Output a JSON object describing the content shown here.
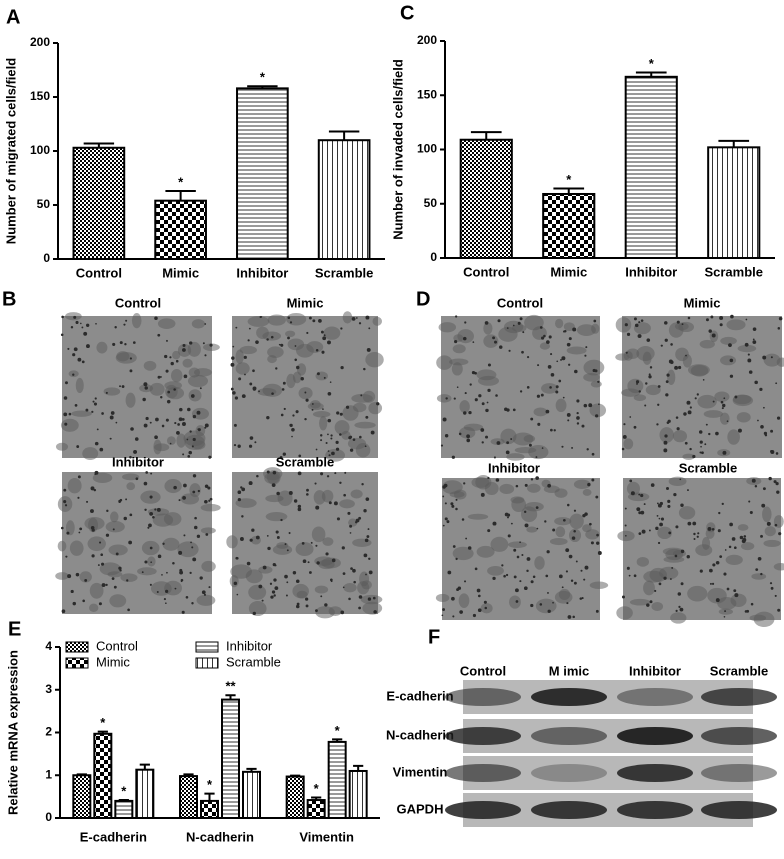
{
  "chart_data": [
    {
      "type": "bar",
      "panel": "A",
      "y_label": "Number of migrated cells/field",
      "categories": [
        "Control",
        "Mimic",
        "Inhibitor",
        "Scramble"
      ],
      "values": [
        103,
        54,
        158,
        110
      ],
      "errors": [
        4,
        9,
        2,
        8
      ],
      "annotations": [
        null,
        "*",
        "*",
        null
      ],
      "fills": [
        "checker-fine",
        "checker",
        "hlines",
        "vlines"
      ],
      "color": "#000000",
      "ylim": [
        0,
        200
      ],
      "yticks": [
        0,
        50,
        100,
        150,
        200
      ]
    },
    {
      "type": "bar",
      "panel": "C",
      "y_label": "Number of invaded cells/field",
      "categories": [
        "Control",
        "Mimic",
        "Inhibitor",
        "Scramble"
      ],
      "values": [
        109,
        59,
        167,
        102
      ],
      "errors": [
        7,
        5,
        4,
        6
      ],
      "annotations": [
        null,
        "*",
        "*",
        null
      ],
      "fills": [
        "checker-fine",
        "checker",
        "hlines",
        "vlines"
      ],
      "color": "#000000",
      "ylim": [
        0,
        200
      ],
      "yticks": [
        0,
        50,
        100,
        150,
        200
      ]
    },
    {
      "type": "grouped-bar",
      "panel": "E",
      "y_label": "Relative mRNA expression",
      "categories": [
        "E-cadherin",
        "N-cadherin",
        "Vimentin"
      ],
      "series": [
        {
          "name": "Control",
          "fill": "checker-fine",
          "values": [
            1.0,
            0.98,
            0.97
          ],
          "errors": [
            0.02,
            0.04,
            0.02
          ],
          "annotations": [
            null,
            null,
            null
          ]
        },
        {
          "name": "Mimic",
          "fill": "checker",
          "values": [
            1.97,
            0.4,
            0.42
          ],
          "errors": [
            0.05,
            0.17,
            0.06
          ],
          "annotations": [
            "*",
            "*",
            "*"
          ]
        },
        {
          "name": "Inhibitor",
          "fill": "hlines",
          "values": [
            0.4,
            2.77,
            1.78
          ],
          "errors": [
            0.02,
            0.1,
            0.06
          ],
          "annotations": [
            "*",
            "**",
            "*"
          ]
        },
        {
          "name": "Scramble",
          "fill": "vlines",
          "values": [
            1.13,
            1.08,
            1.1
          ],
          "errors": [
            0.12,
            0.07,
            0.12
          ],
          "annotations": [
            null,
            null,
            null
          ]
        }
      ],
      "color": "#000000",
      "ylim": [
        0,
        4
      ],
      "yticks": [
        0,
        1,
        2,
        3,
        4
      ],
      "legend": "top-left"
    }
  ],
  "micrographs": [
    {
      "panel": "B",
      "labels": [
        "Control",
        "Mimic",
        "Inhibitor",
        "Scramble"
      ]
    },
    {
      "panel": "D",
      "labels": [
        "Control",
        "Mimic",
        "Inhibitor",
        "Scramble"
      ]
    }
  ],
  "western_blot": {
    "panel": "F",
    "columns": [
      "Control",
      "M imic",
      "Inhibitor",
      "Scramble"
    ],
    "rows": [
      "E-cadherin",
      "N-cadherin",
      "Vimentin",
      "GAPDH"
    ]
  }
}
